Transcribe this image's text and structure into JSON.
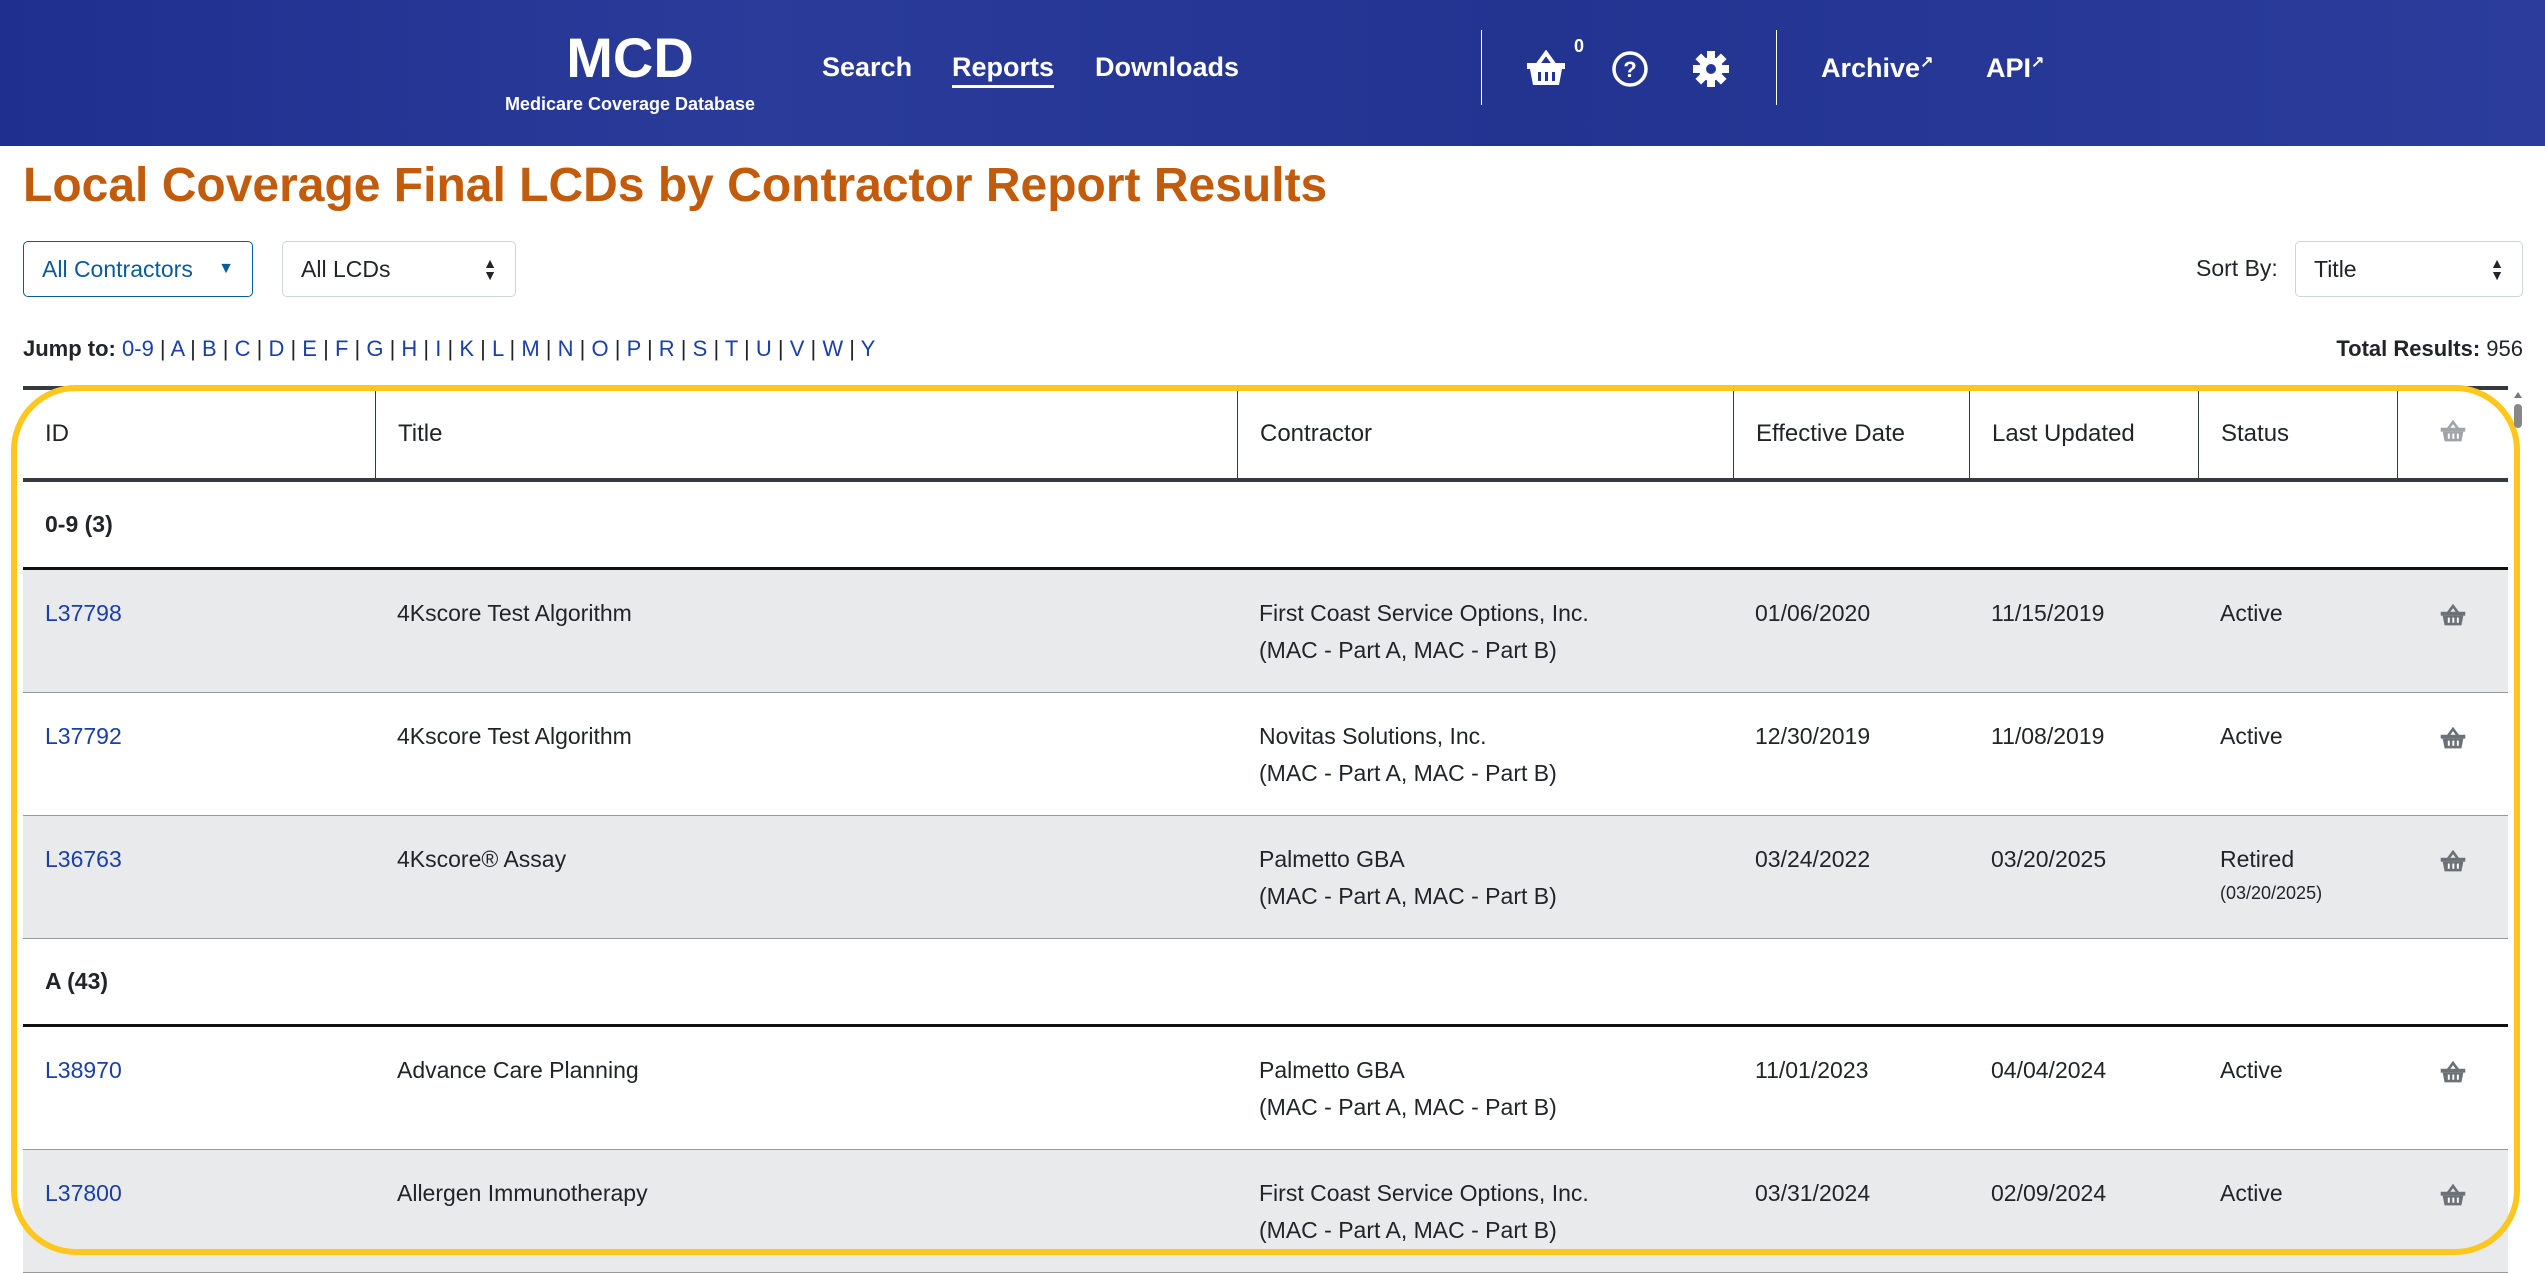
{
  "header": {
    "logo": "MCD",
    "logo_subtitle": "Medicare Coverage Database",
    "nav": [
      "Search",
      "Reports",
      "Downloads"
    ],
    "active_nav": "Reports",
    "basket_count": "0",
    "links": [
      "Archive",
      "API"
    ]
  },
  "page_title": "Local Coverage Final LCDs by Contractor Report Results",
  "filters": {
    "contractor": "All Contractors",
    "lcd": "All LCDs",
    "sort_label": "Sort By:",
    "sort_value": "Title"
  },
  "jump": {
    "label": "Jump to:",
    "letters": [
      "0-9",
      "A",
      "B",
      "C",
      "D",
      "E",
      "F",
      "G",
      "H",
      "I",
      "K",
      "L",
      "M",
      "N",
      "O",
      "P",
      "R",
      "S",
      "T",
      "U",
      "V",
      "W",
      "Y"
    ]
  },
  "total": {
    "label": "Total Results:",
    "value": "956"
  },
  "table": {
    "columns": [
      "ID",
      "Title",
      "Contractor",
      "Effective Date",
      "Last Updated",
      "Status"
    ],
    "groups": [
      {
        "label": "0-9 (3)",
        "rows": [
          {
            "id": "L37798",
            "title": "4Kscore Test Algorithm",
            "contractor": "First Coast Service Options, Inc.",
            "type": "(MAC - Part A, MAC - Part B)",
            "effective": "01/06/2020",
            "updated": "11/15/2019",
            "status": "Active",
            "status_date": ""
          },
          {
            "id": "L37792",
            "title": "4Kscore Test Algorithm",
            "contractor": "Novitas Solutions, Inc.",
            "type": "(MAC - Part A, MAC - Part B)",
            "effective": "12/30/2019",
            "updated": "11/08/2019",
            "status": "Active",
            "status_date": ""
          },
          {
            "id": "L36763",
            "title": "4Kscore® Assay",
            "contractor": "Palmetto GBA",
            "type": "(MAC - Part A, MAC - Part B)",
            "effective": "03/24/2022",
            "updated": "03/20/2025",
            "status": "Retired",
            "status_date": "(03/20/2025)"
          }
        ]
      },
      {
        "label": "A (43)",
        "rows": [
          {
            "id": "L38970",
            "title": "Advance Care Planning",
            "contractor": "Palmetto GBA",
            "type": "(MAC - Part A, MAC - Part B)",
            "effective": "11/01/2023",
            "updated": "04/04/2024",
            "status": "Active",
            "status_date": ""
          },
          {
            "id": "L37800",
            "title": "Allergen Immunotherapy",
            "contractor": "First Coast Service Options, Inc.",
            "type": "(MAC - Part A, MAC - Part B)",
            "effective": "03/31/2024",
            "updated": "02/09/2024",
            "status": "Active",
            "status_date": ""
          }
        ]
      }
    ]
  },
  "colors": {
    "header": "#24359a",
    "title": "#c25b0b",
    "link": "#1a3fa8",
    "highlight": "#fdc71d"
  }
}
